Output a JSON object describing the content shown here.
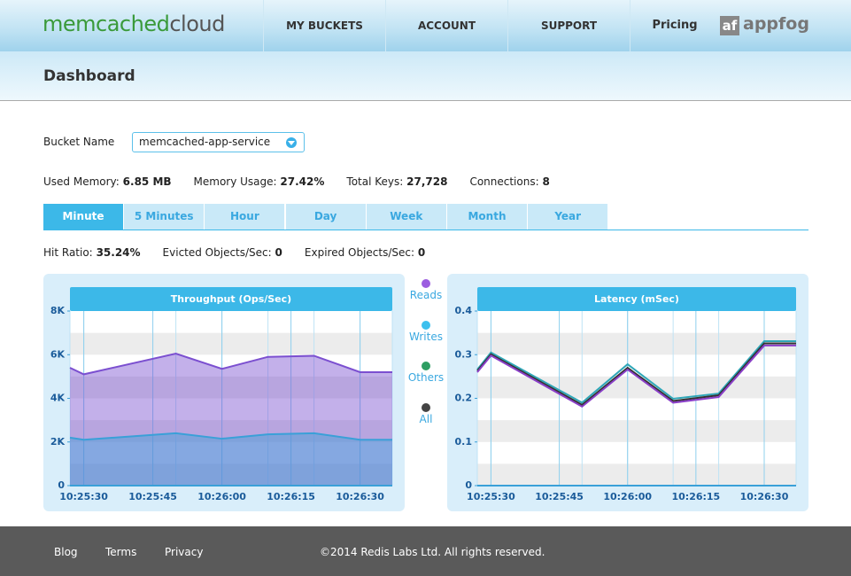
{
  "header": {
    "logo_main": "memcached",
    "logo_sub": "cloud",
    "nav": [
      "MY BUCKETS",
      "ACCOUNT",
      "SUPPORT",
      "Pricing"
    ],
    "partner_mark": "af",
    "partner_name": "appfog"
  },
  "page_title": "Dashboard",
  "bucket": {
    "label": "Bucket Name",
    "selected": "memcached-app-service"
  },
  "stats": [
    {
      "label": "Used Memory:",
      "value": "6.85 MB"
    },
    {
      "label": "Memory Usage:",
      "value": "27.42%"
    },
    {
      "label": "Total Keys:",
      "value": "27,728"
    },
    {
      "label": "Connections:",
      "value": "8"
    }
  ],
  "tabs": {
    "items": [
      "Minute",
      "5 Minutes",
      "Hour",
      "Day",
      "Week",
      "Month",
      "Year"
    ],
    "active": "Minute"
  },
  "ratios": [
    {
      "label": "Hit Ratio:",
      "value": "35.24%"
    },
    {
      "label": "Evicted Objects/Sec:",
      "value": "0"
    },
    {
      "label": "Expired Objects/Sec:",
      "value": "0"
    }
  ],
  "legend": [
    {
      "name": "Reads",
      "color": "#9c5de0"
    },
    {
      "name": "Writes",
      "color": "#3cc0ee"
    },
    {
      "name": "Others",
      "color": "#2e9e62"
    },
    {
      "name": "All",
      "color": "#444444"
    }
  ],
  "chart_data": [
    {
      "type": "area",
      "title": "Throughput (Ops/Sec)",
      "x": [
        "10:25:27",
        "10:25:30",
        "10:25:50",
        "10:26:00",
        "10:26:10",
        "10:26:20",
        "10:26:30",
        "10:26:37"
      ],
      "xlim": [
        "10:25:27",
        "10:26:37"
      ],
      "xticks": [
        "10:25:30",
        "10:25:45",
        "10:26:00",
        "10:26:15",
        "10:26:30"
      ],
      "ylim": [
        0,
        8000
      ],
      "yticks": [
        0,
        {
          "value": 2000,
          "label": "2K"
        },
        {
          "value": 4000,
          "label": "4K"
        },
        {
          "value": 6000,
          "label": "6K"
        },
        {
          "value": 8000,
          "label": "8K"
        }
      ],
      "series": [
        {
          "name": "Reads",
          "color": "#7b4fd0",
          "values": [
            5400,
            5100,
            6050,
            5350,
            5900,
            5950,
            5200,
            5200
          ]
        },
        {
          "name": "Writes",
          "color": "#3aa0d8",
          "values": [
            2200,
            2100,
            2400,
            2150,
            2350,
            2400,
            2100,
            2100
          ]
        }
      ]
    },
    {
      "type": "line",
      "title": "Latency (mSec)",
      "x": [
        "10:25:27",
        "10:25:30",
        "10:25:50",
        "10:26:00",
        "10:26:10",
        "10:26:20",
        "10:26:30",
        "10:26:37"
      ],
      "xlim": [
        "10:25:27",
        "10:26:37"
      ],
      "xticks": [
        "10:25:30",
        "10:25:45",
        "10:26:00",
        "10:26:15",
        "10:26:30"
      ],
      "ylim": [
        0,
        0.4
      ],
      "yticks": [
        0,
        0.1,
        0.2,
        0.3,
        0.4
      ],
      "series": [
        {
          "name": "Writes",
          "color": "#2fa7b8",
          "values": [
            0.266,
            0.305,
            0.19,
            0.278,
            0.199,
            0.211,
            0.331,
            0.331
          ]
        },
        {
          "name": "All",
          "color": "#333333",
          "values": [
            0.263,
            0.301,
            0.185,
            0.27,
            0.194,
            0.207,
            0.326,
            0.326
          ]
        },
        {
          "name": "Reads",
          "color": "#8a3fc8",
          "values": [
            0.26,
            0.298,
            0.181,
            0.266,
            0.19,
            0.203,
            0.321,
            0.321
          ]
        }
      ]
    }
  ],
  "footer": {
    "links": [
      "Blog",
      "Terms",
      "Privacy"
    ],
    "copyright": "©2014 Redis Labs Ltd. All rights reserved."
  }
}
